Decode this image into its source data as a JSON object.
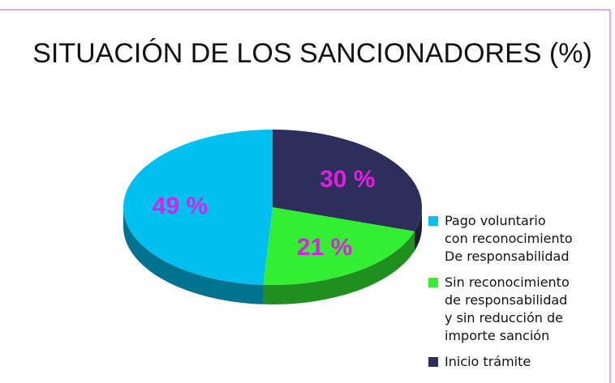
{
  "chart_data": {
    "type": "pie3d",
    "title": "SITUACIÓN DE LOS SANCIONADORES (%)",
    "series": [
      {
        "name": "Inicio trámite",
        "color": "#2e2e5c",
        "value": 30,
        "value_label": "30 %"
      },
      {
        "name": "Sin reconocimiento\nde responsabilidad\ny sin reducción de\nimporte sanción",
        "color": "#33ee33",
        "value": 21,
        "value_label": "21 %"
      },
      {
        "name": "Pago voluntario\ncon reconocimiento\nDe responsabilidad",
        "color": "#00c0f0",
        "value": 49,
        "value_label": "49 %"
      }
    ],
    "legend_order": [
      2,
      1,
      0
    ],
    "label_color": "#e020e0"
  }
}
